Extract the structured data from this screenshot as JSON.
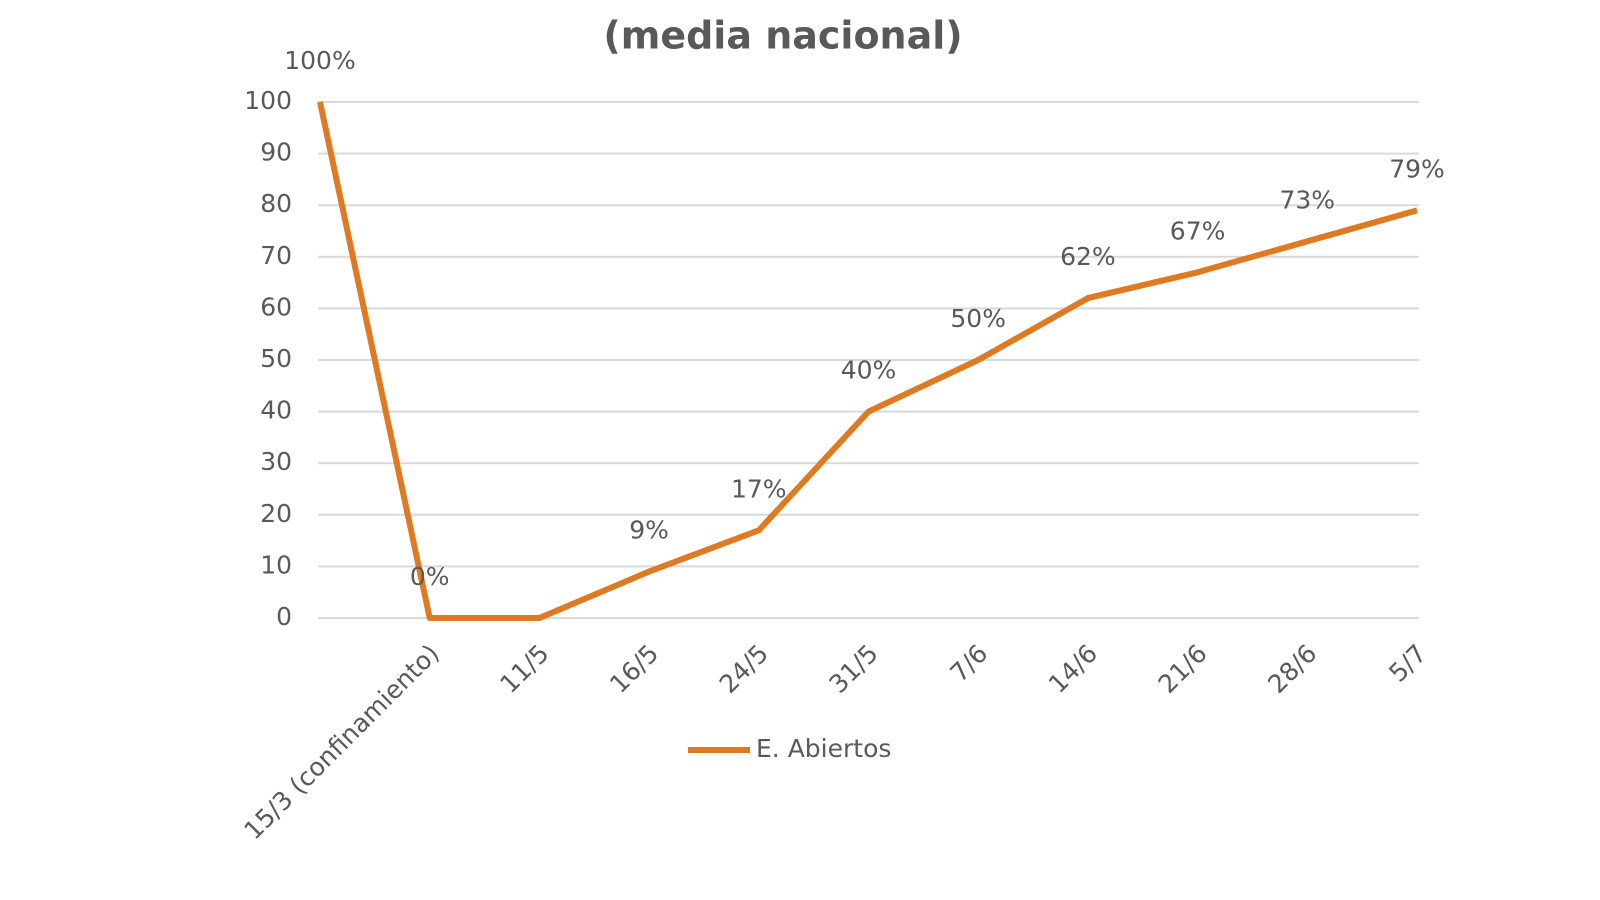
{
  "chart_data": {
    "type": "line",
    "title": "(media nacional)",
    "categories": [
      null,
      "15/3 (confinamiento)",
      "11/5",
      "16/5",
      "24/5",
      "31/5",
      "7/6",
      "14/6",
      "21/6",
      "28/6",
      "5/7"
    ],
    "series": [
      {
        "name": "E. Abiertos",
        "color": "#e07a22",
        "values": [
          100,
          0,
          0,
          9,
          17,
          40,
          50,
          62,
          67,
          73,
          79
        ],
        "value_labels": [
          "100%",
          "0%",
          null,
          "9%",
          "17%",
          "40%",
          "50%",
          "62%",
          "67%",
          "73%",
          "79%"
        ]
      }
    ],
    "ylim": [
      0,
      100
    ],
    "yticks": [
      0,
      10,
      20,
      30,
      40,
      50,
      60,
      70,
      80,
      90,
      100
    ],
    "grid": true,
    "legend": "bottom"
  }
}
